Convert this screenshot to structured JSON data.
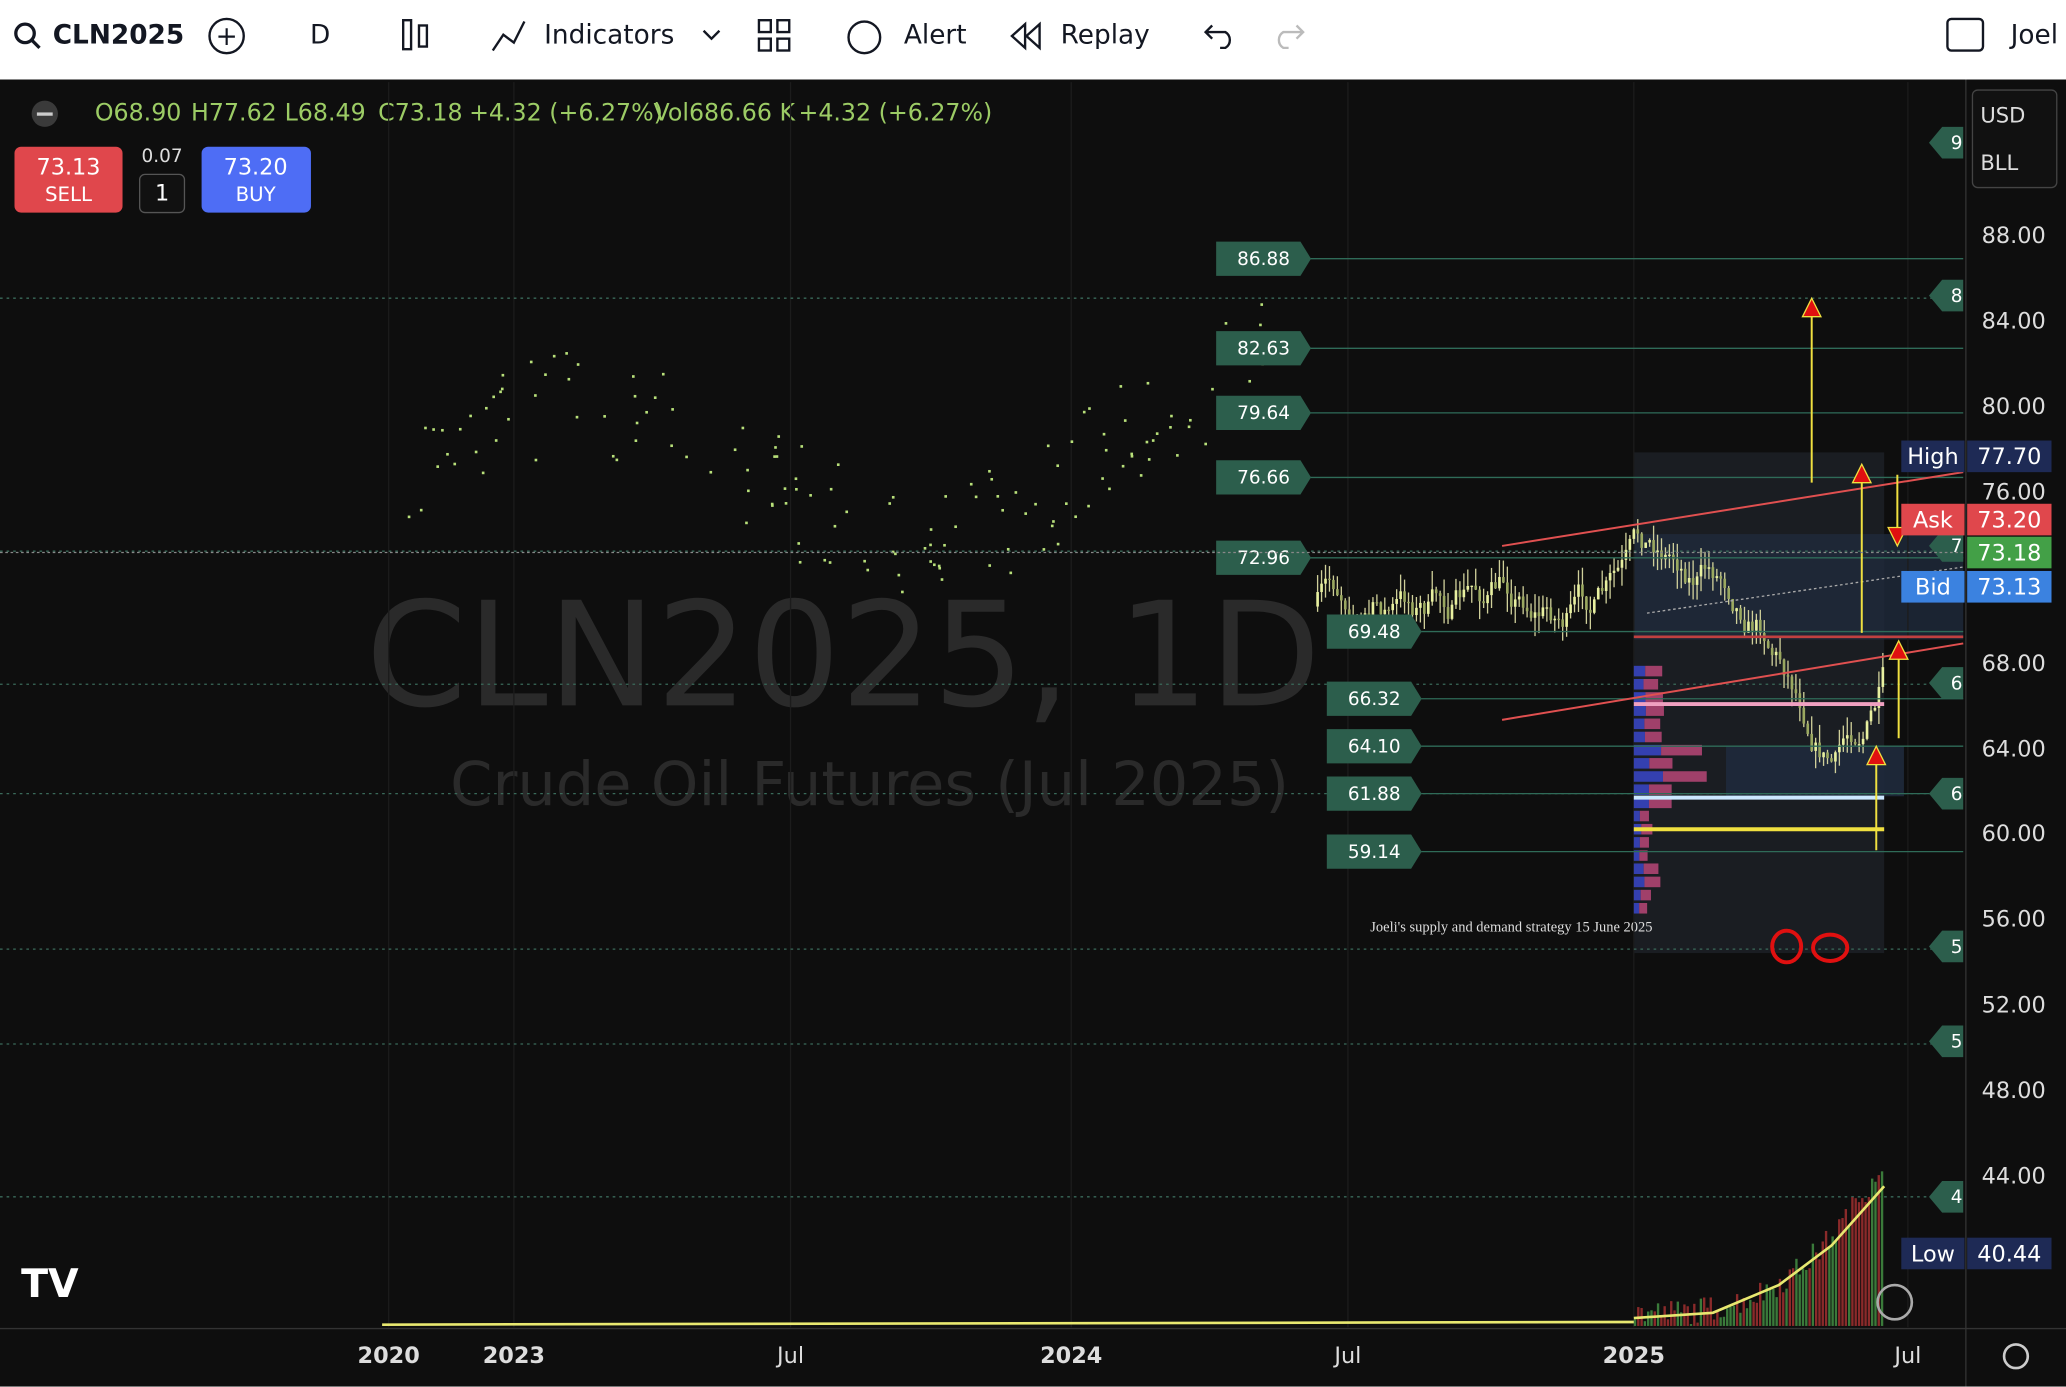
{
  "toolbar": {
    "symbol": "CLN2025",
    "interval": "D",
    "indicators": "Indicators",
    "alert": "Alert",
    "replay": "Replay",
    "user": "Joel"
  },
  "legend": {
    "open": "O68.90",
    "high": "H77.62",
    "low": "L68.49",
    "close": "C73.18",
    "change": "+4.32 (+6.27%)",
    "volume": "Vol686.66 K",
    "volume_change": "+4.32 (+6.27%)"
  },
  "trade": {
    "sell_price": "73.13",
    "sell": "SELL",
    "spread": "0.07",
    "quantity": "1",
    "buy_price": "73.20",
    "buy": "BUY"
  },
  "watermark": {
    "symbol": "CLN2025, 1D",
    "description": "Crude Oil Futures (Jul 2025)"
  },
  "price_axis": {
    "currency": "USD",
    "unit": "BLL",
    "ticks": [
      "88.00",
      "84.00",
      "80.00",
      "76.00",
      "68.00",
      "64.00",
      "60.00",
      "56.00",
      "52.00",
      "48.00",
      "44.00"
    ]
  },
  "price_labels": {
    "high_label": "High",
    "high": "77.70",
    "ask_label": "Ask",
    "ask": "73.20",
    "last": "73.18",
    "bid_label": "Bid",
    "bid": "73.13",
    "low_label": "Low",
    "low": "40.44"
  },
  "levels": [
    "86.88",
    "82.63",
    "79.64",
    "76.66",
    "72.96",
    "69.48",
    "66.32",
    "64.10",
    "61.88",
    "59.14"
  ],
  "edge_tags": [
    "9",
    "8",
    "7",
    "6",
    "6",
    "5",
    "5",
    "4"
  ],
  "annotation": "Joeli's supply and demand strategy 15 June 2025",
  "time_axis": [
    "2020",
    "2023",
    "Jul",
    "2024",
    "Jul",
    "2025",
    "Jul"
  ]
}
